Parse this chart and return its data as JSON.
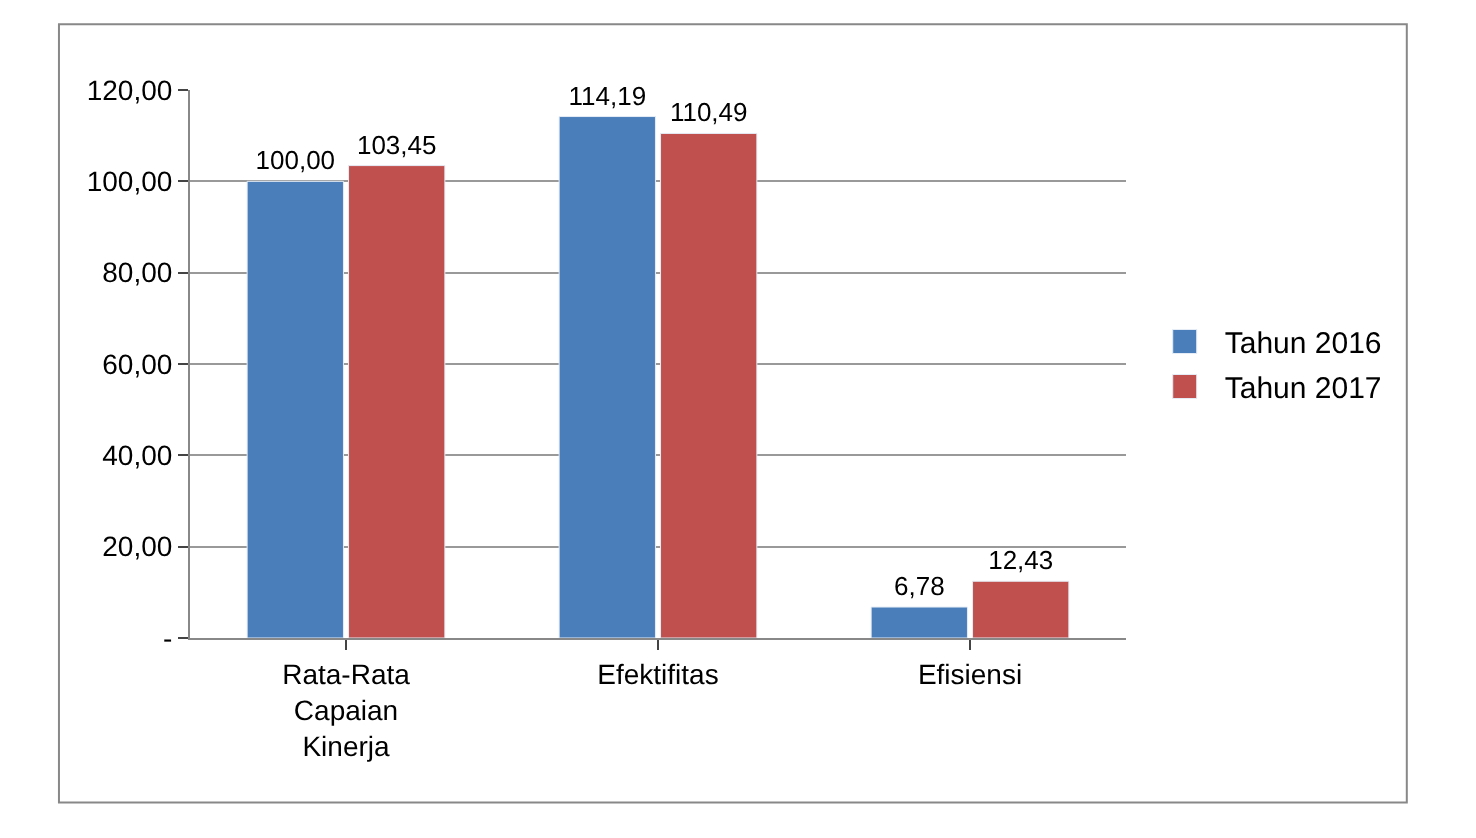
{
  "chart_data": {
    "type": "bar",
    "categories": [
      "Rata-Rata Capaian Kinerja",
      "Efektifitas",
      "Efisiensi"
    ],
    "series": [
      {
        "name": "Tahun 2016",
        "color": "#4a7ebb",
        "values": [
          100.0,
          114.19,
          6.78
        ],
        "value_labels": [
          "100,00",
          "114,19",
          "6,78"
        ]
      },
      {
        "name": "Tahun 2017",
        "color": "#c0504d",
        "values": [
          103.45,
          110.49,
          12.43
        ],
        "value_labels": [
          "103,45",
          "110,49",
          "12,43"
        ]
      }
    ],
    "ylim": [
      0,
      120
    ],
    "yticks": [
      {
        "value": 0,
        "label": "-"
      },
      {
        "value": 20,
        "label": "20,00"
      },
      {
        "value": 40,
        "label": "40,00"
      },
      {
        "value": 60,
        "label": "60,00"
      },
      {
        "value": 80,
        "label": "80,00"
      },
      {
        "value": 100,
        "label": "100,00"
      },
      {
        "value": 120,
        "label": "120,00"
      }
    ],
    "grid": "y",
    "legend": "right"
  }
}
